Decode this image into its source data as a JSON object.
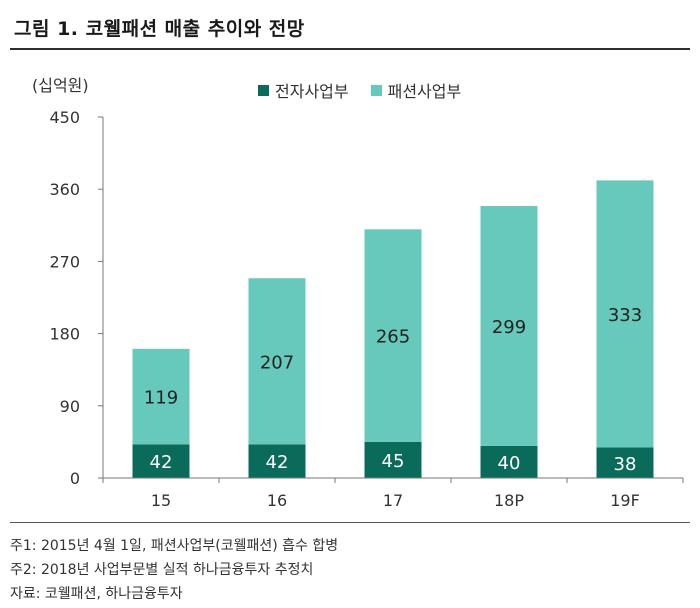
{
  "figure": {
    "title": "그림 1. 코웰패션 매출 추이와 전망",
    "unit": "(십억원)"
  },
  "notes": [
    "주1: 2015년 4월 1일, 패션사업부(코웰패션) 흡수 합병",
    "주2: 2018년 사업부문별 실적 하나금융투자 추정치"
  ],
  "source": "자료: 코웰패션, 하나금융투자",
  "colors": {
    "electronics": "#0b6b5a",
    "fashion": "#66c9bb"
  },
  "chart_data": {
    "type": "bar",
    "stacked": true,
    "categories": [
      "15",
      "16",
      "17",
      "18P",
      "19F"
    ],
    "series": [
      {
        "name": "전자사업부",
        "values": [
          42,
          42,
          45,
          40,
          38
        ]
      },
      {
        "name": "패션사업부",
        "values": [
          119,
          207,
          265,
          299,
          333
        ]
      }
    ],
    "yticks": [
      "0",
      "90",
      "180",
      "270",
      "360",
      "450"
    ],
    "ylim": [
      0,
      450
    ],
    "legend_position": "top",
    "grid": false
  }
}
